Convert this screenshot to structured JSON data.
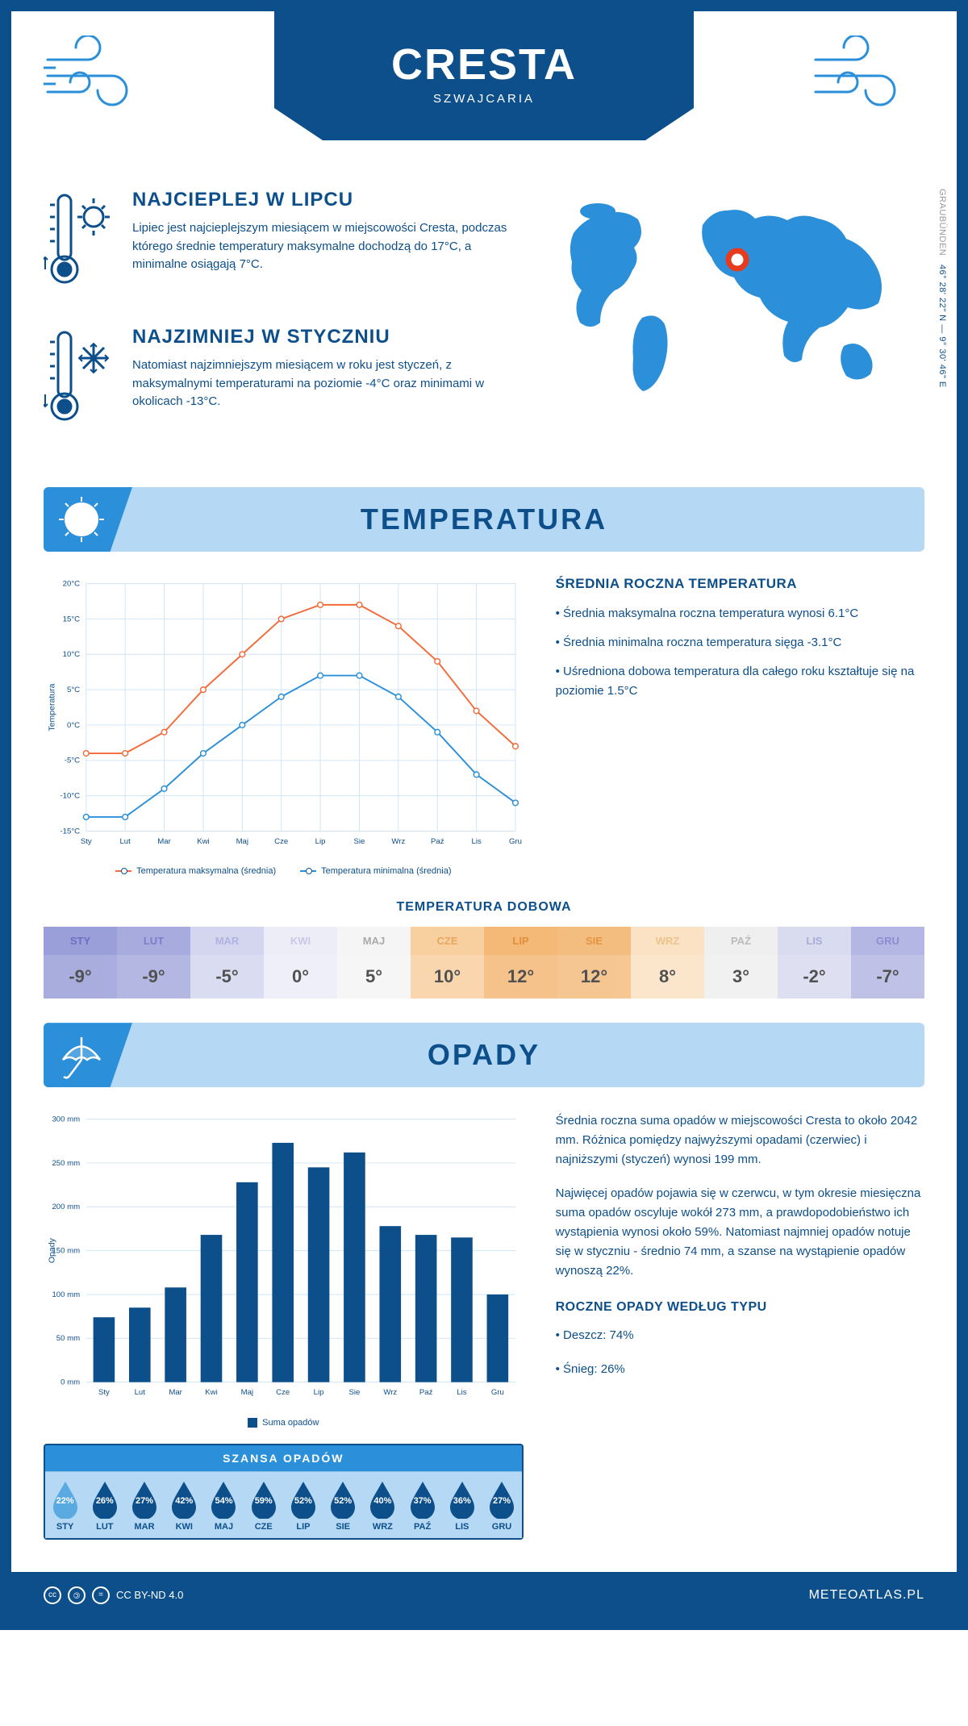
{
  "header": {
    "title": "CRESTA",
    "subtitle": "SZWAJCARIA"
  },
  "coords": {
    "region": "GRAUBÜNDEN",
    "lat": "46° 28' 22\" N",
    "lon": "9° 30' 46\" E"
  },
  "facts": {
    "warm": {
      "title": "NAJCIEPLEJ W LIPCU",
      "text": "Lipiec jest najcieplejszym miesiącem w miejscowości Cresta, podczas którego średnie temperatury maksymalne dochodzą do 17°C, a minimalne osiągają 7°C."
    },
    "cold": {
      "title": "NAJZIMNIEJ W STYCZNIU",
      "text": "Natomiast najzimniejszym miesiącem w roku jest styczeń, z maksymalnymi temperaturami na poziomie -4°C oraz minimami w okolicach -13°C."
    }
  },
  "map": {
    "marker_color": "#e63b1f"
  },
  "sections": {
    "temperature": "TEMPERATURA",
    "precip": "OPADY"
  },
  "temp_chart": {
    "type": "line",
    "months": [
      "Sty",
      "Lut",
      "Mar",
      "Kwi",
      "Maj",
      "Cze",
      "Lip",
      "Sie",
      "Wrz",
      "Paź",
      "Lis",
      "Gru"
    ],
    "series_max": {
      "label": "Temperatura maksymalna (średnia)",
      "color": "#f26b3a",
      "values": [
        -4,
        -4,
        -1,
        5,
        10,
        15,
        17,
        17,
        14,
        9,
        2,
        -3
      ]
    },
    "series_min": {
      "label": "Temperatura minimalna (średnia)",
      "color": "#2b90d9",
      "values": [
        -13,
        -13,
        -9,
        -4,
        0,
        4,
        7,
        7,
        4,
        -1,
        -7,
        -11
      ]
    },
    "ylim": [
      -15,
      20
    ],
    "ytick_step": 5,
    "y_label": "Temperatura",
    "grid_color": "#d0e4f5",
    "background": "#ffffff"
  },
  "temp_info": {
    "heading": "ŚREDNIA ROCZNA TEMPERATURA",
    "bullets": [
      "• Średnia maksymalna roczna temperatura wynosi 6.1°C",
      "• Średnia minimalna roczna temperatura sięga -3.1°C",
      "• Uśredniona dobowa temperatura dla całego roku kształtuje się na poziomie 1.5°C"
    ]
  },
  "daily": {
    "title": "TEMPERATURA DOBOWA",
    "months": [
      "STY",
      "LUT",
      "MAR",
      "KWI",
      "MAJ",
      "CZE",
      "LIP",
      "SIE",
      "WRZ",
      "PAŹ",
      "LIS",
      "GRU"
    ],
    "values": [
      "-9°",
      "-9°",
      "-5°",
      "0°",
      "5°",
      "10°",
      "12°",
      "12°",
      "8°",
      "3°",
      "-2°",
      "-7°"
    ],
    "bg_colors": [
      "#9b9fd9",
      "#a8abde",
      "#d4d6ef",
      "#ecedf7",
      "#f5f5f5",
      "#f8cf9f",
      "#f4b877",
      "#f4bd80",
      "#fbe2c4",
      "#efefef",
      "#d9dbef",
      "#b4b7e3"
    ],
    "text_colors": [
      "#6a6fc4",
      "#7a7fcb",
      "#b0b3e0",
      "#c8c9e8",
      "#aaaaaa",
      "#e8a75f",
      "#e08f3a",
      "#e29542",
      "#edc48d",
      "#bbbbbb",
      "#a8abd8",
      "#8a8ed1"
    ]
  },
  "precip_chart": {
    "type": "bar",
    "months": [
      "Sty",
      "Lut",
      "Mar",
      "Kwi",
      "Maj",
      "Cze",
      "Lip",
      "Sie",
      "Wrz",
      "Paź",
      "Lis",
      "Gru"
    ],
    "values": [
      74,
      85,
      108,
      168,
      228,
      273,
      245,
      262,
      178,
      168,
      165,
      100
    ],
    "bar_color": "#0d4f8b",
    "ylim": [
      0,
      300
    ],
    "ytick_step": 50,
    "y_label": "Opady",
    "legend": "Suma opadów",
    "grid_color": "#d0e4f5"
  },
  "precip_info": {
    "p1": "Średnia roczna suma opadów w miejscowości Cresta to około 2042 mm. Różnica pomiędzy najwyższymi opadami (czerwiec) i najniższymi (styczeń) wynosi 199 mm.",
    "p2": "Najwięcej opadów pojawia się w czerwcu, w tym okresie miesięczna suma opadów oscyluje wokół 273 mm, a prawdopodobieństwo ich wystąpienia wynosi około 59%. Natomiast najmniej opadów notuje się w styczniu - średnio 74 mm, a szanse na wystąpienie opadów wynoszą 22%.",
    "type_heading": "ROCZNE OPADY WEDŁUG TYPU",
    "rain": "• Deszcz: 74%",
    "snow": "• Śnieg: 26%"
  },
  "chance": {
    "title": "SZANSA OPADÓW",
    "months": [
      "STY",
      "LUT",
      "MAR",
      "KWI",
      "MAJ",
      "CZE",
      "LIP",
      "SIE",
      "WRZ",
      "PAŹ",
      "LIS",
      "GRU"
    ],
    "values": [
      "22%",
      "26%",
      "27%",
      "42%",
      "54%",
      "59%",
      "52%",
      "52%",
      "40%",
      "37%",
      "36%",
      "27%"
    ],
    "light_idx": 0,
    "drop_dark": "#0d4f8b",
    "drop_light": "#5aa9e0"
  },
  "footer": {
    "license": "CC BY-ND 4.0",
    "site": "METEOATLAS.PL"
  },
  "colors": {
    "primary": "#0d4f8b",
    "secondary": "#2b90d9",
    "light": "#b5d9f4"
  }
}
